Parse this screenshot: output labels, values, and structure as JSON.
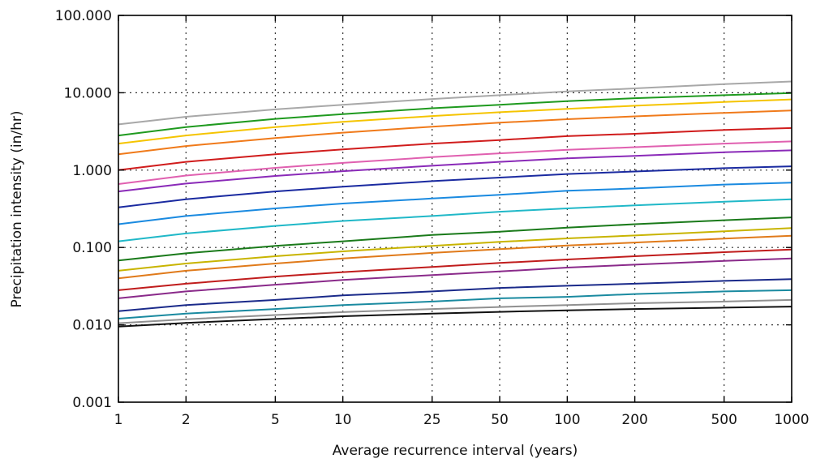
{
  "chart_data": {
    "type": "line",
    "x_scale": "log",
    "y_scale": "log",
    "xlabel": "Average recurrence interval (years)",
    "ylabel": "Precipitation intensity (in/hr)",
    "xlim": [
      1,
      1000
    ],
    "ylim": [
      0.001,
      100
    ],
    "grid": true,
    "x_ticks": [
      1,
      2,
      5,
      10,
      25,
      50,
      100,
      200,
      500,
      1000
    ],
    "x_tick_labels": [
      "1",
      "2",
      "5",
      "10",
      "25",
      "50",
      "100",
      "200",
      "500",
      "1000"
    ],
    "y_ticks": [
      0.001,
      0.01,
      0.1,
      1,
      10,
      100
    ],
    "y_tick_labels": [
      "0.001",
      "0.010",
      "0.100",
      "1.000",
      "10.000",
      "100.000"
    ],
    "x": [
      1,
      2,
      5,
      10,
      25,
      50,
      100,
      200,
      500,
      1000
    ],
    "series": [
      {
        "color": "#a8a8a8",
        "values": [
          3.9,
          4.9,
          6.1,
          7.0,
          8.3,
          9.3,
          10.4,
          11.4,
          12.9,
          14.0
        ]
      },
      {
        "color": "#1f9a1f",
        "values": [
          2.8,
          3.6,
          4.6,
          5.3,
          6.3,
          7.0,
          7.8,
          8.5,
          9.3,
          9.9
        ]
      },
      {
        "color": "#f5c400",
        "values": [
          2.2,
          2.8,
          3.6,
          4.2,
          5.0,
          5.6,
          6.2,
          6.8,
          7.6,
          8.2
        ]
      },
      {
        "color": "#f07a1a",
        "values": [
          1.6,
          2.05,
          2.6,
          3.05,
          3.65,
          4.1,
          4.55,
          4.95,
          5.5,
          5.9
        ]
      },
      {
        "color": "#d01c1c",
        "values": [
          1.0,
          1.28,
          1.6,
          1.85,
          2.2,
          2.45,
          2.75,
          2.95,
          3.3,
          3.5
        ]
      },
      {
        "color": "#e060b0",
        "values": [
          0.66,
          0.85,
          1.07,
          1.24,
          1.47,
          1.65,
          1.83,
          1.98,
          2.2,
          2.35
        ]
      },
      {
        "color": "#8a2ab8",
        "values": [
          0.53,
          0.67,
          0.84,
          0.97,
          1.14,
          1.28,
          1.42,
          1.53,
          1.7,
          1.8
        ]
      },
      {
        "color": "#1a2aa0",
        "values": [
          0.33,
          0.42,
          0.53,
          0.61,
          0.72,
          0.8,
          0.89,
          0.96,
          1.06,
          1.12
        ]
      },
      {
        "color": "#1a8ae0",
        "values": [
          0.2,
          0.255,
          0.32,
          0.37,
          0.43,
          0.48,
          0.54,
          0.58,
          0.65,
          0.69
        ]
      },
      {
        "color": "#20b8c8",
        "values": [
          0.12,
          0.152,
          0.19,
          0.22,
          0.255,
          0.29,
          0.32,
          0.35,
          0.39,
          0.42
        ]
      },
      {
        "color": "#1a7a1a",
        "values": [
          0.068,
          0.084,
          0.105,
          0.12,
          0.145,
          0.16,
          0.18,
          0.2,
          0.225,
          0.245
        ]
      },
      {
        "color": "#c8b400",
        "values": [
          0.05,
          0.062,
          0.077,
          0.089,
          0.105,
          0.118,
          0.131,
          0.143,
          0.162,
          0.178
        ]
      },
      {
        "color": "#e07a1a",
        "values": [
          0.04,
          0.05,
          0.062,
          0.072,
          0.085,
          0.095,
          0.106,
          0.116,
          0.13,
          0.142
        ]
      },
      {
        "color": "#c01c1c",
        "values": [
          0.028,
          0.034,
          0.042,
          0.048,
          0.056,
          0.063,
          0.07,
          0.077,
          0.087,
          0.094
        ]
      },
      {
        "color": "#8a2a8a",
        "values": [
          0.022,
          0.027,
          0.033,
          0.038,
          0.044,
          0.049,
          0.055,
          0.06,
          0.067,
          0.072
        ]
      },
      {
        "color": "#1a2a8a",
        "values": [
          0.015,
          0.018,
          0.021,
          0.024,
          0.027,
          0.03,
          0.032,
          0.034,
          0.037,
          0.039
        ]
      },
      {
        "color": "#1a8aa0",
        "values": [
          0.012,
          0.014,
          0.016,
          0.018,
          0.02,
          0.022,
          0.023,
          0.025,
          0.027,
          0.028
        ]
      },
      {
        "color": "#909090",
        "values": [
          0.0105,
          0.0118,
          0.0134,
          0.0146,
          0.016,
          0.017,
          0.018,
          0.019,
          0.02,
          0.021
        ]
      },
      {
        "color": "#111111",
        "values": [
          0.0095,
          0.0106,
          0.0119,
          0.0129,
          0.014,
          0.0147,
          0.0154,
          0.016,
          0.0167,
          0.0172
        ]
      }
    ]
  }
}
